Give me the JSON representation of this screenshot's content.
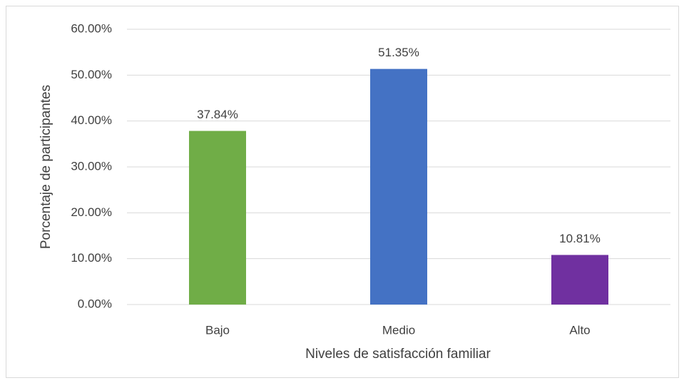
{
  "chart_data": {
    "type": "bar",
    "x_label": "Niveles de satisfacción familiar",
    "y_label": "Porcentaje de participantes",
    "categories": [
      "Bajo",
      "Medio",
      "Alto"
    ],
    "values": [
      37.84,
      51.35,
      10.81
    ],
    "value_labels": [
      "37.84%",
      "51.35%",
      "10.81%"
    ],
    "colors": [
      "#70ad47",
      "#4472c4",
      "#7030a0"
    ],
    "ylim": [
      0,
      60
    ],
    "yticks": [
      {
        "value": 0,
        "label": "0.00%"
      },
      {
        "value": 10,
        "label": "10.00%"
      },
      {
        "value": 20,
        "label": "20.00%"
      },
      {
        "value": 30,
        "label": "30.00%"
      },
      {
        "value": 40,
        "label": "40.00%"
      },
      {
        "value": 50,
        "label": "50.00%"
      },
      {
        "value": 60,
        "label": "60.00%"
      }
    ],
    "grid": true
  }
}
